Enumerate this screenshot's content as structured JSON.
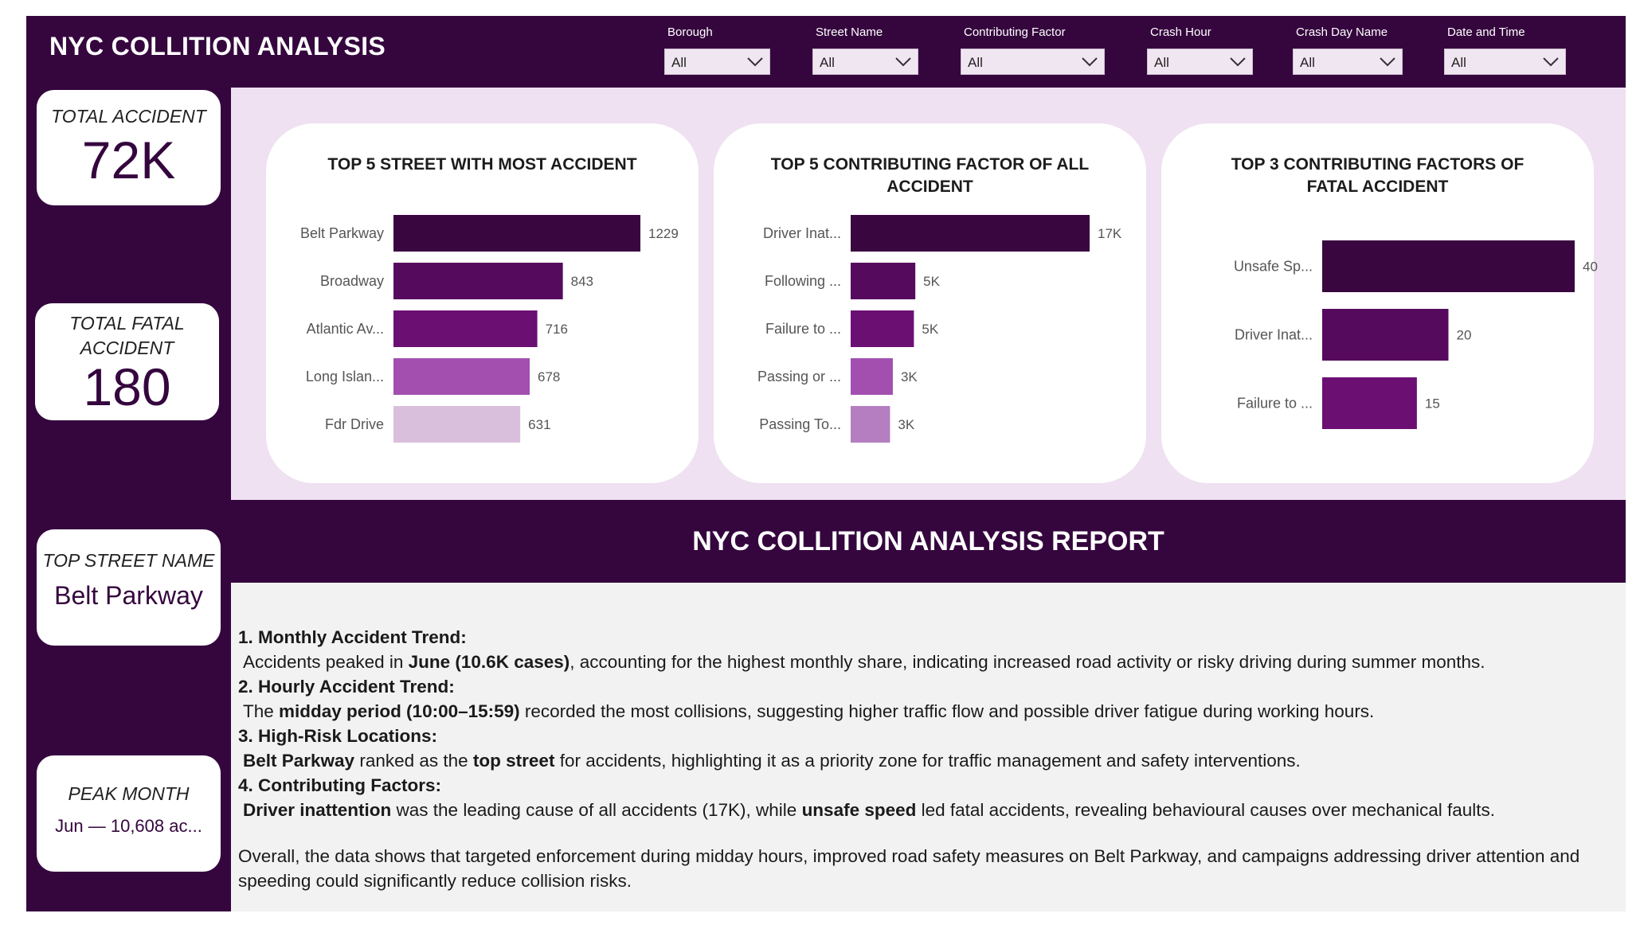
{
  "header": {
    "title": "NYC COLLITION ANALYSIS"
  },
  "slicers": [
    {
      "label": "Borough",
      "value": "All"
    },
    {
      "label": "Street Name",
      "value": "All"
    },
    {
      "label": "Contributing Factor",
      "value": "All"
    },
    {
      "label": "Crash Hour",
      "value": "All"
    },
    {
      "label": "Crash Day Name",
      "value": "All"
    },
    {
      "label": "Date and Time",
      "value": "All"
    }
  ],
  "kpis": {
    "total_accident": {
      "label": "TOTAL ACCIDENT",
      "value": "72K"
    },
    "total_fatal": {
      "label_line1": "TOTAL FATAL",
      "label_line2": "ACCIDENT",
      "value": "180"
    },
    "top_street": {
      "label": "TOP STREET NAME",
      "value": "Belt Parkway"
    },
    "peak_month": {
      "label": "PEAK MONTH",
      "value": "Jun — 10,608 ac..."
    }
  },
  "chart_data": [
    {
      "type": "bar",
      "orientation": "horizontal",
      "title": "TOP 5 STREET WITH MOST ACCIDENT",
      "categories": [
        "Belt Parkway",
        "Broadway",
        "Atlantic Av...",
        "Long Islan...",
        "Fdr Drive"
      ],
      "values": [
        1229,
        843,
        716,
        678,
        631
      ],
      "labels": [
        "1229",
        "843",
        "716",
        "678",
        "631"
      ],
      "colors": [
        "#3a0640",
        "#550a5e",
        "#6b0f73",
        "#a24fb0",
        "#d9bfdc"
      ],
      "xlim": [
        0,
        1229
      ]
    },
    {
      "type": "bar",
      "orientation": "horizontal",
      "title": "TOP 5 CONTRIBUTING FACTOR OF ALL ACCIDENT",
      "categories": [
        "Driver Inat...",
        "Following ...",
        "Failure to ...",
        "Passing or ...",
        "Passing To..."
      ],
      "values": [
        17000,
        4600,
        4500,
        3000,
        2800
      ],
      "labels": [
        "17K",
        "5K",
        "5K",
        "3K",
        "3K"
      ],
      "colors": [
        "#3a0640",
        "#550a5e",
        "#6b0f73",
        "#a24fb0",
        "#b47ec0"
      ],
      "xlim": [
        0,
        17000
      ]
    },
    {
      "type": "bar",
      "orientation": "horizontal",
      "title": "TOP 3 CONTRIBUTING FACTORS OF FATAL ACCIDENT",
      "categories": [
        "Unsafe Sp...",
        "Driver Inat...",
        "Failure to ..."
      ],
      "values": [
        40,
        20,
        15
      ],
      "labels": [
        "40",
        "20",
        "15"
      ],
      "colors": [
        "#3a0640",
        "#550a5e",
        "#6b0f73"
      ],
      "xlim": [
        0,
        40
      ]
    }
  ],
  "report": {
    "title": "NYC COLLITION ANALYSIS REPORT",
    "lines": [
      [
        {
          "t": "1. Monthly Accident Trend:",
          "b": true
        }
      ],
      [
        {
          "t": " Accidents peaked in "
        },
        {
          "t": "June (10.6K cases)",
          "b": true
        },
        {
          "t": ", accounting for the highest monthly share, indicating increased road activity or risky driving during summer months."
        }
      ],
      [
        {
          "t": "2. Hourly Accident Trend:",
          "b": true
        }
      ],
      [
        {
          "t": " The "
        },
        {
          "t": "midday period (10:00–15:59)",
          "b": true
        },
        {
          "t": " recorded the most collisions, suggesting higher traffic flow and possible driver fatigue during working hours."
        }
      ],
      [
        {
          "t": "3. High-Risk Locations:",
          "b": true
        }
      ],
      [
        {
          "t": " "
        },
        {
          "t": "Belt Parkway",
          "b": true
        },
        {
          "t": " ranked as the "
        },
        {
          "t": "top street",
          "b": true
        },
        {
          "t": " for accidents, highlighting it as a priority zone for traffic management and safety interventions."
        }
      ],
      [
        {
          "t": "4. Contributing Factors:",
          "b": true
        }
      ],
      [
        {
          "t": " "
        },
        {
          "t": "Driver inattention",
          "b": true
        },
        {
          "t": " was the leading cause of all accidents (17K), while "
        },
        {
          "t": "unsafe speed",
          "b": true
        },
        {
          "t": " led fatal accidents, revealing behavioural causes over mechanical faults."
        }
      ]
    ],
    "conclusion_line1": "Overall, the data shows that targeted enforcement during midday hours, improved road safety measures on Belt Parkway, and campaigns addressing driver attention and",
    "conclusion_line2": "speeding could significantly reduce collision risks."
  }
}
